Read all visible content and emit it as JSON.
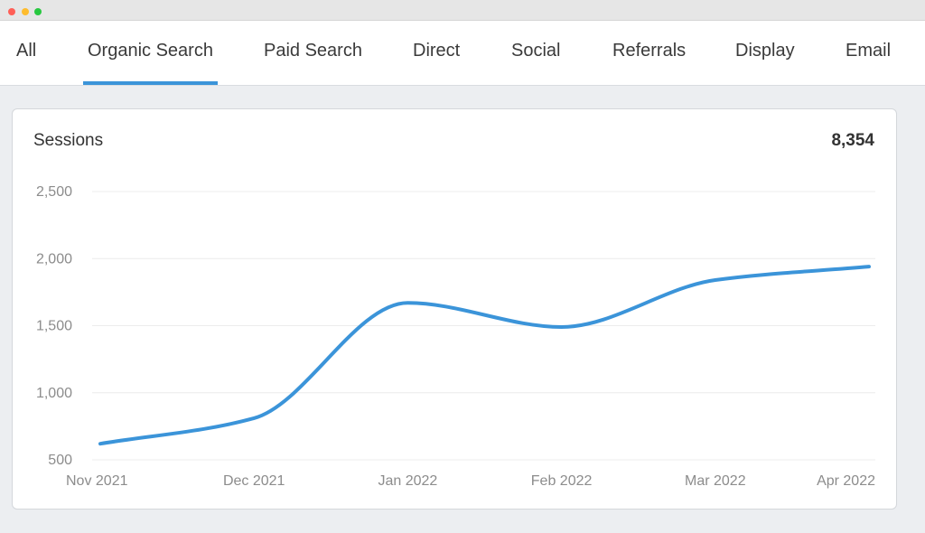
{
  "window": {
    "controls": [
      "close",
      "minimize",
      "maximize"
    ],
    "colors": {
      "close": "#FF5F57",
      "minimize": "#FEBC2E",
      "maximize": "#28C840"
    }
  },
  "tabs": [
    {
      "label": "All",
      "active": false
    },
    {
      "label": "Organic Search",
      "active": true
    },
    {
      "label": "Paid Search",
      "active": false
    },
    {
      "label": "Direct",
      "active": false
    },
    {
      "label": "Social",
      "active": false
    },
    {
      "label": "Referrals",
      "active": false
    },
    {
      "label": "Display",
      "active": false
    },
    {
      "label": "Email",
      "active": false
    }
  ],
  "accent_color": "#3B94D9",
  "card": {
    "title": "Sessions",
    "total": "8,354"
  },
  "chart_data": {
    "type": "line",
    "title": "Sessions",
    "xlabel": "",
    "ylabel": "",
    "x": [
      "Nov 2021",
      "Dec 2021",
      "Jan 2022",
      "Feb 2022",
      "Mar 2022",
      "Apr 2022"
    ],
    "series": [
      {
        "values": [
          620,
          810,
          1670,
          1490,
          1840,
          1940
        ],
        "color": "#3B94D9"
      }
    ],
    "y_ticks": [
      500,
      1000,
      1500,
      2000,
      2500
    ],
    "y_tick_labels": [
      "500",
      "1,000",
      "1,500",
      "2,000",
      "2,500"
    ],
    "ylim": [
      500,
      2500
    ],
    "grid": true,
    "legend": "none"
  }
}
